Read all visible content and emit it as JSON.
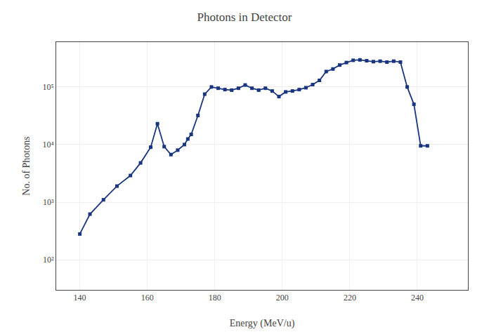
{
  "chart_data": {
    "type": "line",
    "title": "Photons in Detector",
    "xlabel": "Energy (MeV/u)",
    "ylabel": "No. of Photons",
    "log": "y",
    "grid": true,
    "color": "#1a3580",
    "marker": "square",
    "line_style": "solid",
    "xlim": [
      133,
      255
    ],
    "xticks": [
      140,
      160,
      180,
      200,
      220,
      240
    ],
    "ylim": [
      30,
      600000
    ],
    "yticks": [
      {
        "value": 100,
        "label": "10²"
      },
      {
        "value": 1000,
        "label": "10³"
      },
      {
        "value": 10000,
        "label": "10⁴"
      },
      {
        "value": 100000,
        "label": "10⁵"
      }
    ],
    "x": [
      140,
      143,
      147,
      151,
      155,
      158,
      161,
      163,
      165,
      167,
      169,
      171,
      172,
      173,
      175,
      177,
      179,
      181,
      183,
      185,
      187,
      189,
      191,
      193,
      195,
      197,
      199,
      201,
      203,
      205,
      207,
      209,
      211,
      213,
      215,
      217,
      219,
      221,
      223,
      225,
      227,
      229,
      231,
      233,
      235,
      237,
      239,
      241,
      243
    ],
    "values": [
      280,
      620,
      1100,
      1900,
      2900,
      4800,
      9000,
      23000,
      9200,
      6700,
      8000,
      10000,
      12500,
      15000,
      32000,
      75000,
      100000,
      95000,
      90000,
      88000,
      95000,
      108000,
      95000,
      88000,
      95000,
      85000,
      68000,
      82000,
      85000,
      90000,
      97000,
      110000,
      130000,
      185000,
      205000,
      240000,
      265000,
      290000,
      295000,
      285000,
      275000,
      280000,
      270000,
      280000,
      270000,
      100000,
      50000,
      9500,
      9500
    ]
  }
}
